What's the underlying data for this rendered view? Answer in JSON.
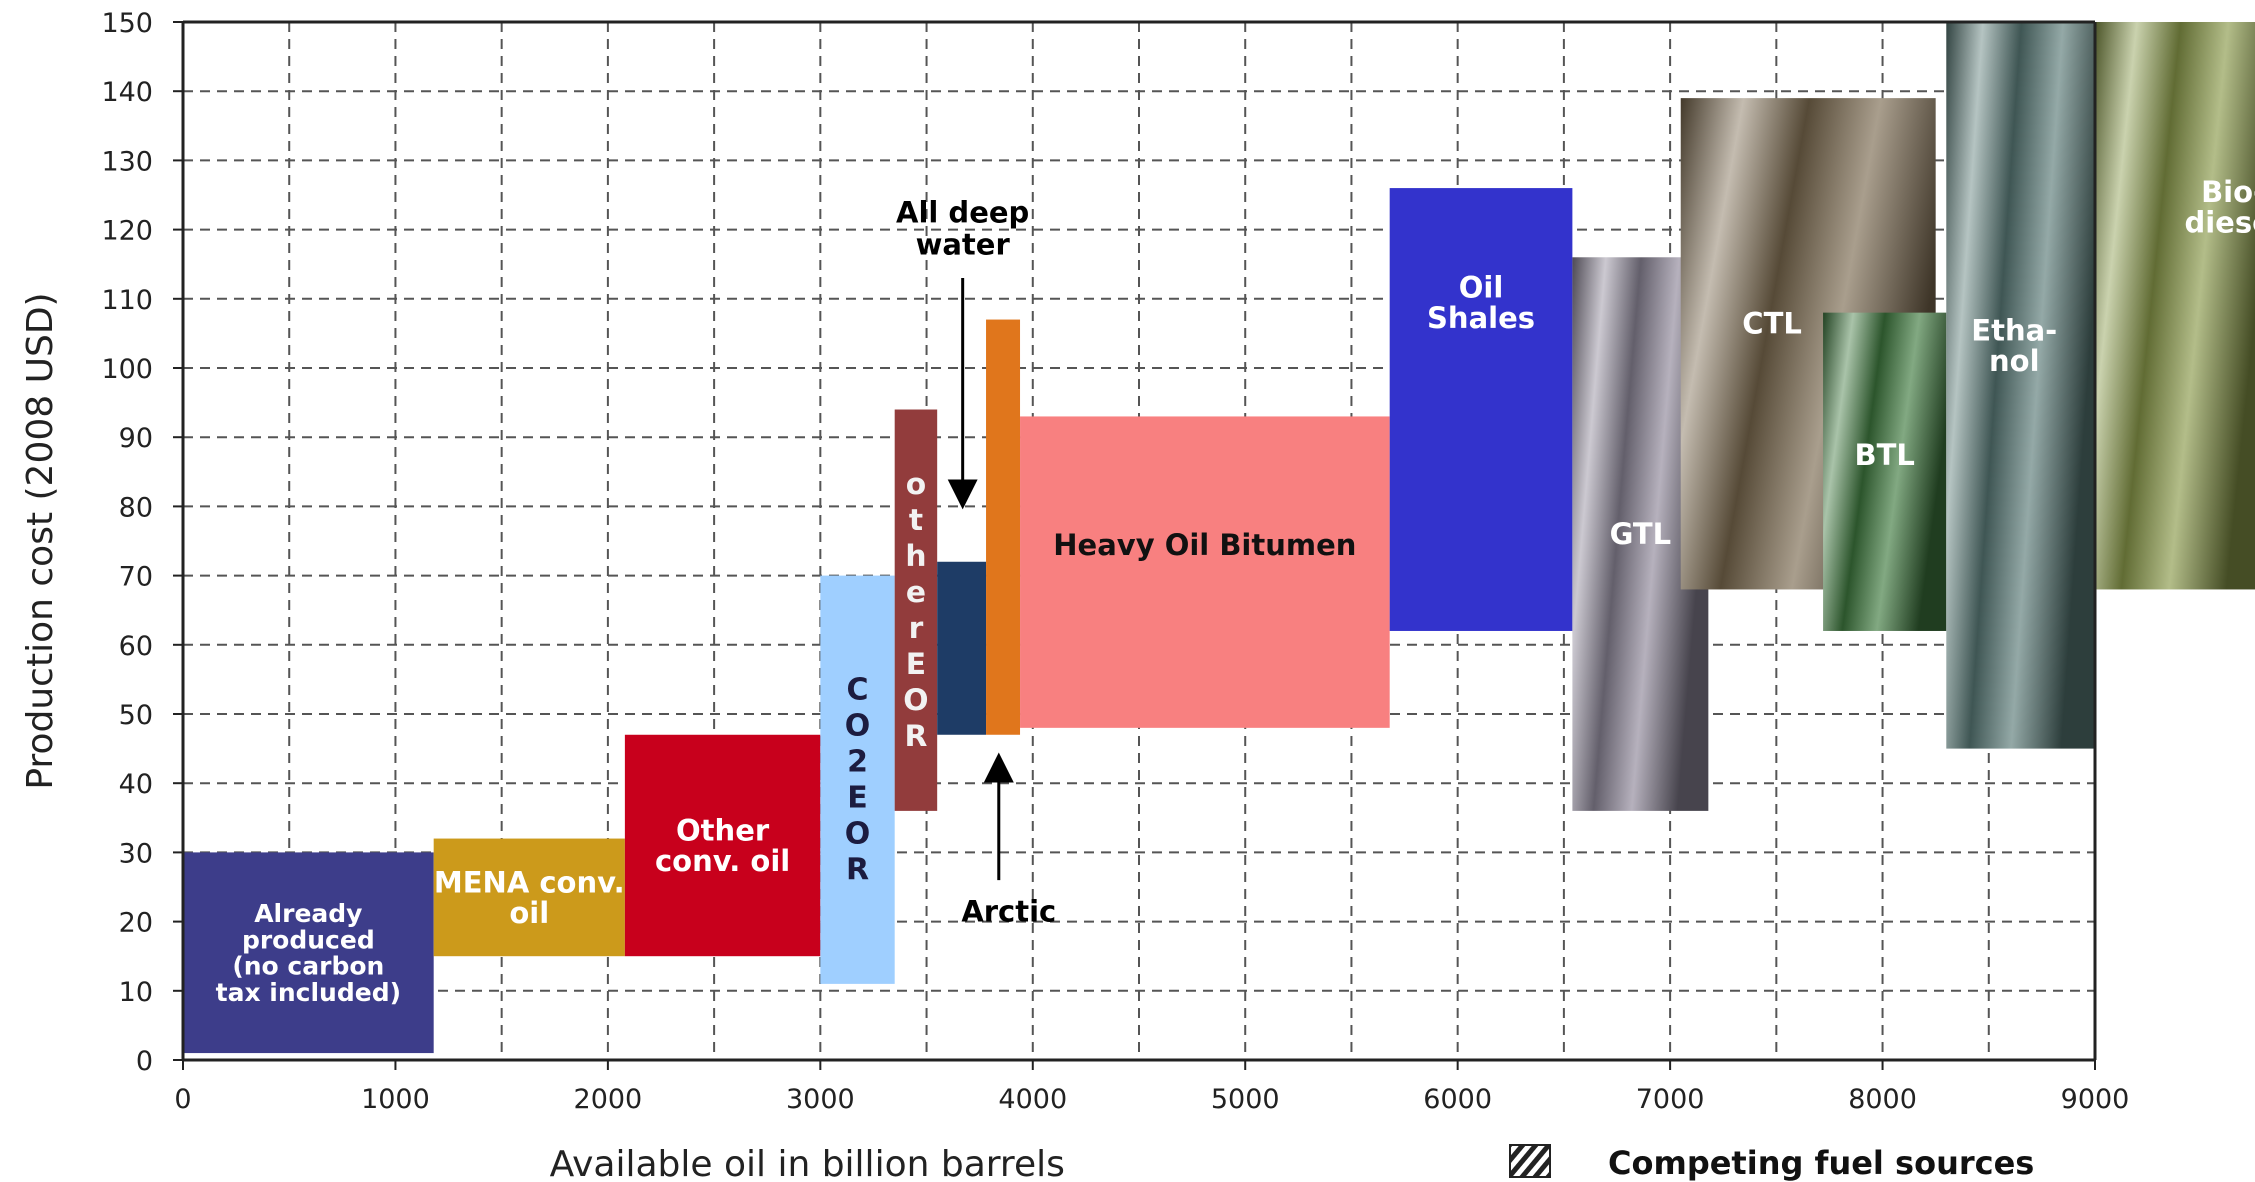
{
  "chart_data": {
    "type": "bar",
    "title": "",
    "xlabel": "Available oil in billion barrels",
    "ylabel": "Production cost (2008 USD)",
    "xlim": [
      0,
      9000
    ],
    "ylim": [
      0,
      150
    ],
    "xticks": [
      0,
      1000,
      2000,
      3000,
      4000,
      5000,
      6000,
      7000,
      8000,
      9000
    ],
    "yticks": [
      0,
      10,
      20,
      30,
      40,
      50,
      60,
      70,
      80,
      90,
      100,
      110,
      120,
      130,
      140,
      150
    ],
    "grid": true,
    "legend": {
      "position": "bottom-right",
      "label": "Competing fuel sources",
      "swatch": "hatched"
    },
    "series": [
      {
        "label": "Already produced (no carbon tax included)",
        "x_start": 0,
        "x_end": 1180,
        "y_low": 1,
        "y_high": 30,
        "color": "#3d3d8a",
        "textColor": "#ffffff",
        "style": "solid"
      },
      {
        "label": "MENA conv. oil",
        "x_start": 1180,
        "x_end": 2080,
        "y_low": 15,
        "y_high": 32,
        "color": "#cc9a1b",
        "textColor": "#ffffff",
        "style": "solid"
      },
      {
        "label": "Other conv. oil",
        "x_start": 2080,
        "x_end": 3000,
        "y_low": 15,
        "y_high": 47,
        "color": "#c8001c",
        "textColor": "#ffffff",
        "style": "solid"
      },
      {
        "label": "CO2 EOR",
        "x_start": 3000,
        "x_end": 3350,
        "y_low": 11,
        "y_high": 70,
        "color": "#9fcfff",
        "textColor": "#1c1c40",
        "style": "solid",
        "vertical": true
      },
      {
        "label": "other EOR",
        "x_start": 3350,
        "x_end": 3550,
        "y_low": 36,
        "y_high": 94,
        "color": "#923c3c",
        "textColor": "#f2f2f2",
        "style": "solid",
        "vertical": true
      },
      {
        "label": "All deep water",
        "x_start": 3550,
        "x_end": 3780,
        "y_low": 47,
        "y_high": 72,
        "color": "#1e3c66",
        "textColor": "#000000",
        "style": "solid"
      },
      {
        "label": "Arctic",
        "x_start": 3780,
        "x_end": 3940,
        "y_low": 47,
        "y_high": 107,
        "color": "#e0761c",
        "textColor": "#000000",
        "style": "solid"
      },
      {
        "label": "Heavy Oil Bitumen",
        "x_start": 3940,
        "x_end": 5680,
        "y_low": 48,
        "y_high": 93,
        "color": "#f88080",
        "textColor": "#111111",
        "style": "solid"
      },
      {
        "label": "Oil Shales",
        "x_start": 5680,
        "x_end": 6540,
        "y_low": 62,
        "y_high": 126,
        "color": "#3333cc",
        "textColor": "#ffffff",
        "style": "solid"
      },
      {
        "label": "GTL",
        "x_start": 6540,
        "x_end": 7180,
        "y_low": 36,
        "y_high": 116,
        "color": "#8e8799",
        "textColor": "#ffffff",
        "style": "gradient"
      },
      {
        "label": "CTL",
        "x_start": 7050,
        "x_end": 8250,
        "y_low": 68,
        "y_high": 139,
        "color": "#7b6a4f",
        "textColor": "#ffffff",
        "style": "gradient"
      },
      {
        "label": "BTL",
        "x_start": 7720,
        "x_end": 8300,
        "y_low": 62,
        "y_high": 108,
        "color": "#3f7a3f",
        "textColor": "#ffffff",
        "style": "gradient"
      },
      {
        "label": "Etha-nol",
        "x_start": 8300,
        "x_end": 9000,
        "y_low": 45,
        "y_high": 150,
        "color": "#5a7b78",
        "textColor": "#ffffff",
        "style": "gradient"
      },
      {
        "label": "Bio-diesel",
        "x_start": 9000,
        "x_end": 9800,
        "y_low": 68,
        "y_high": 150,
        "color": "#8a9a4a",
        "textColor": "#ffffff",
        "style": "gradient"
      }
    ],
    "annotations": [
      {
        "text": "All deep water",
        "arrow_to_x": 3670,
        "arrow_to_y": 80,
        "side": "top"
      },
      {
        "text": "Arctic",
        "arrow_to_x": 3840,
        "arrow_to_y": 44,
        "side": "bottom"
      }
    ]
  }
}
